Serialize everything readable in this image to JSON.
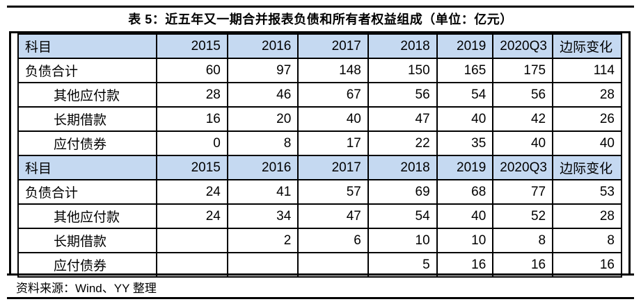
{
  "title": "表 5：近五年又一期合并报表负债和所有者权益组成（单位：亿元）",
  "source": "资料来源：Wind、YY 整理",
  "colors": {
    "header_bg": "#C5D9F1",
    "border": "#000000",
    "text": "#000000",
    "background": "#FFFFFF"
  },
  "chart_data": {
    "type": "table",
    "title": "表 5：近五年又一期合并报表负债和所有者权益组成（单位：亿元）",
    "unit": "亿元",
    "sections": [
      {
        "headers": [
          "科目",
          "2015",
          "2016",
          "2017",
          "2018",
          "2019",
          "2020Q3",
          "边际变化"
        ],
        "rows": [
          {
            "label": "负债合计",
            "bold": true,
            "indent": false,
            "values": [
              "60",
              "97",
              "148",
              "150",
              "165",
              "175",
              "114"
            ]
          },
          {
            "label": "其他应付款",
            "bold": false,
            "indent": true,
            "values": [
              "28",
              "46",
              "67",
              "56",
              "54",
              "56",
              "28"
            ]
          },
          {
            "label": "长期借款",
            "bold": false,
            "indent": true,
            "values": [
              "16",
              "20",
              "40",
              "47",
              "40",
              "42",
              "26"
            ]
          },
          {
            "label": "应付债券",
            "bold": false,
            "indent": true,
            "values": [
              "0",
              "8",
              "17",
              "22",
              "35",
              "40",
              "40"
            ]
          }
        ]
      },
      {
        "headers": [
          "科目",
          "2015",
          "2016",
          "2017",
          "2018",
          "2019",
          "2020Q3",
          "边际变化"
        ],
        "rows": [
          {
            "label": "负债合计",
            "bold": true,
            "indent": false,
            "values": [
              "24",
              "41",
              "57",
              "69",
              "68",
              "77",
              "53"
            ]
          },
          {
            "label": "其他应付款",
            "bold": false,
            "indent": true,
            "values": [
              "24",
              "34",
              "47",
              "54",
              "40",
              "52",
              "28"
            ]
          },
          {
            "label": "长期借款",
            "bold": false,
            "indent": true,
            "values": [
              "",
              "2",
              "6",
              "10",
              "10",
              "8",
              "8"
            ]
          },
          {
            "label": "应付债券",
            "bold": false,
            "indent": true,
            "values": [
              "",
              "",
              "",
              "5",
              "16",
              "16",
              "16"
            ]
          }
        ]
      }
    ],
    "column_widths_pct": [
      23,
      11.7,
      11.7,
      11.6,
      11.4,
      9.3,
      9.9,
      11.4
    ]
  }
}
